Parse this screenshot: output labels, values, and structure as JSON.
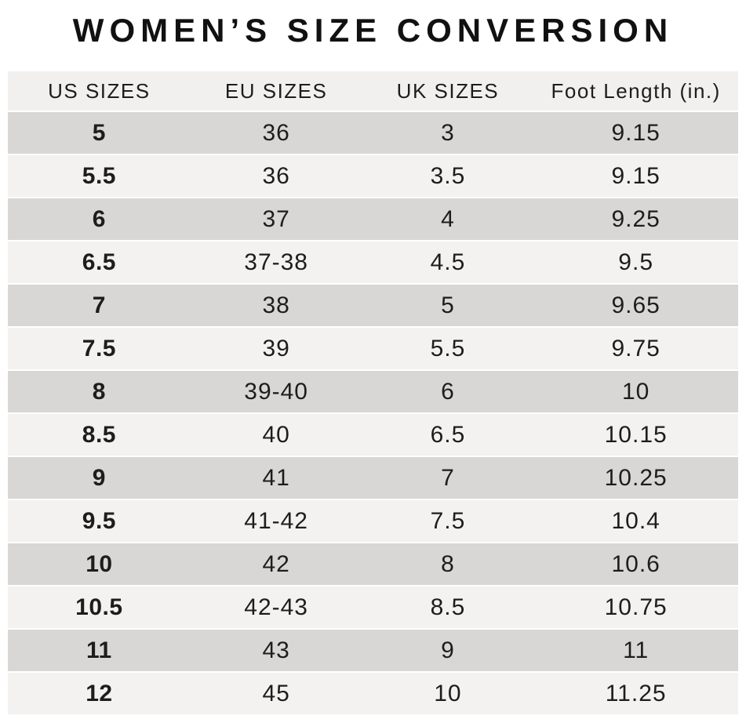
{
  "title": "WOMEN’S SIZE CONVERSION",
  "chart_data": {
    "type": "table",
    "title": "WOMEN’S SIZE CONVERSION",
    "columns": [
      "US SIZES",
      "EU SIZES",
      "UK SIZES",
      "Foot Length (in.)"
    ],
    "rows": [
      [
        "5",
        "36",
        "3",
        "9.15"
      ],
      [
        "5.5",
        "36",
        "3.5",
        "9.15"
      ],
      [
        "6",
        "37",
        "4",
        "9.25"
      ],
      [
        "6.5",
        "37-38",
        "4.5",
        "9.5"
      ],
      [
        "7",
        "38",
        "5",
        "9.65"
      ],
      [
        "7.5",
        "39",
        "5.5",
        "9.75"
      ],
      [
        "8",
        "39-40",
        "6",
        "10"
      ],
      [
        "8.5",
        "40",
        "6.5",
        "10.15"
      ],
      [
        "9",
        "41",
        "7",
        "10.25"
      ],
      [
        "9.5",
        "41-42",
        "7.5",
        "10.4"
      ],
      [
        "10",
        "42",
        "8",
        "10.6"
      ],
      [
        "10.5",
        "42-43",
        "8.5",
        "10.75"
      ],
      [
        "11",
        "43",
        "9",
        "11"
      ],
      [
        "12",
        "45",
        "10",
        "11.25"
      ]
    ],
    "layout": {
      "grid": false,
      "striped_rows": true,
      "first_column_bold": true
    }
  },
  "colors": {
    "page_background": "#ffffff",
    "header_background": "#f1f0ee",
    "row_dark": "#d8d7d5",
    "row_light": "#f3f2f0",
    "row_separator": "#ffffff",
    "text": "#1d1d1d",
    "title_text": "#111111"
  }
}
